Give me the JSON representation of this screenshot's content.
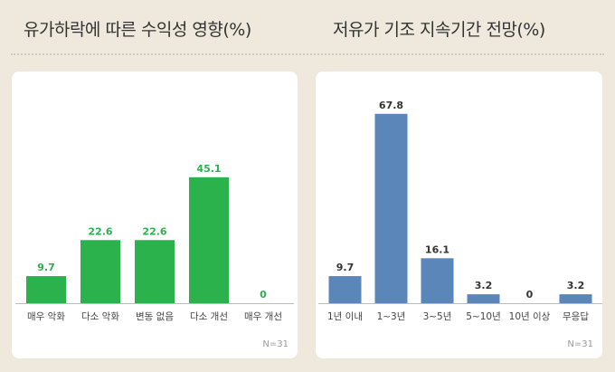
{
  "chart_data": [
    {
      "type": "bar",
      "title": "유가하락에 따른 수익성 영향(%)",
      "categories": [
        "매우 악화",
        "다소 악화",
        "변동 없음",
        "다소 개선",
        "매우 개선"
      ],
      "values": [
        9.7,
        22.6,
        22.6,
        45.1,
        0
      ],
      "value_labels": [
        "9.7",
        "22.6",
        "22.6",
        "45.1",
        "0"
      ],
      "note": "N=31",
      "ylim": [
        0,
        70
      ],
      "color": "#2bb24c",
      "label_color": "#2bb24c",
      "grid": false
    },
    {
      "type": "bar",
      "title": "저유가 기조 지속기간 전망(%)",
      "categories": [
        "1년 이내",
        "1~3년",
        "3~5년",
        "5~10년",
        "10년 이상",
        "무응답"
      ],
      "values": [
        9.7,
        67.8,
        16.1,
        3.2,
        0,
        3.2
      ],
      "value_labels": [
        "9.7",
        "67.8",
        "16.1",
        "3.2",
        "0",
        "3.2"
      ],
      "note": "N=31",
      "ylim": [
        0,
        70
      ],
      "color": "#5b86ba",
      "label_color": "#333333",
      "grid": false
    }
  ]
}
